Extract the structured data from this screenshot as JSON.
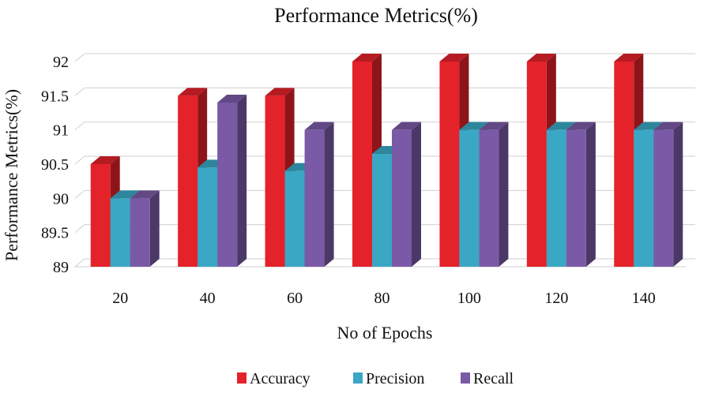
{
  "chart_data": {
    "type": "bar",
    "title": "Performance Metrics(%)",
    "xlabel": "No of Epochs",
    "ylabel": "Performance Metrics(%)",
    "categories": [
      "20",
      "40",
      "60",
      "80",
      "100",
      "120",
      "140"
    ],
    "series": [
      {
        "name": "Accuracy",
        "color": "#e3222a",
        "values": [
          90.5,
          91.5,
          91.5,
          92,
          92,
          92,
          92
        ]
      },
      {
        "name": "Precision",
        "color": "#3aa7c4",
        "values": [
          90,
          90.45,
          90.4,
          90.65,
          91,
          91,
          91
        ]
      },
      {
        "name": "Recall",
        "color": "#7a5aa6",
        "values": [
          90,
          91.4,
          91,
          91,
          91,
          91,
          91
        ]
      }
    ],
    "ylim": [
      89,
      92
    ],
    "yticks": [
      "89",
      "89.5",
      "90",
      "90.5",
      "91",
      "91.5",
      "92"
    ],
    "grid": true,
    "legend": "bottom-center"
  }
}
